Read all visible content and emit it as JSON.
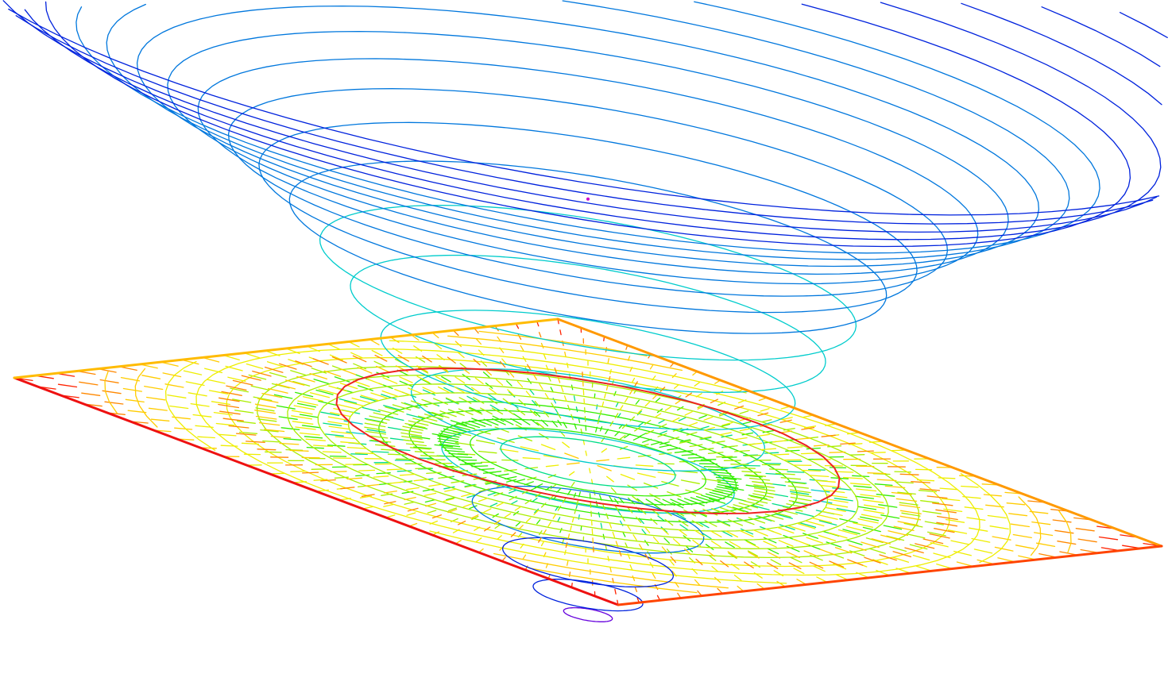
{
  "scene": {
    "kind": "3d-wireframe-vector-field",
    "background": "#ffffff",
    "palette": [
      "#cc00cc",
      "#6600dd",
      "#0022dd",
      "#0077dd",
      "#00cccc",
      "#00dd88",
      "#33ee00",
      "#aaee00",
      "#eeee00",
      "#ffcc00",
      "#ff8800",
      "#ff2200"
    ],
    "frame_colors": {
      "left": "#ee1111",
      "back": "#ffbb00",
      "right": "#ff9900",
      "front": "#ff4400"
    },
    "key_ring_color": "#ee2222",
    "apex_color": "#cc00cc",
    "surface_rings": 22,
    "ground_rings": 14,
    "vector_rays": 84,
    "field_grid": 26
  }
}
